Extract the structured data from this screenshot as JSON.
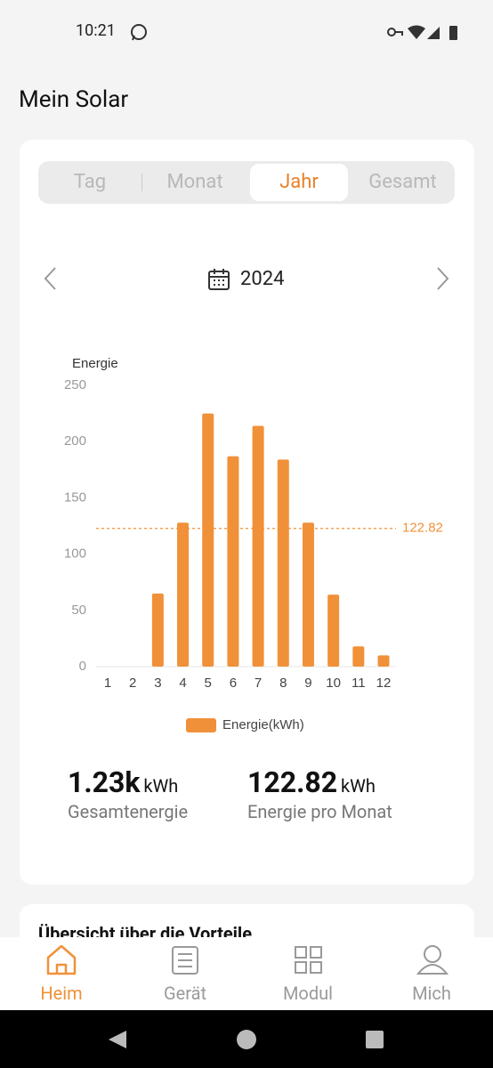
{
  "status_bar": {
    "time": "10:21"
  },
  "header": {
    "title": "Mein Solar"
  },
  "tabs": [
    "Tag",
    "Monat",
    "Jahr",
    "Gesamt"
  ],
  "date": "2024",
  "chart_data": {
    "type": "bar",
    "y_label": "Energie",
    "categories": [
      "1",
      "2",
      "3",
      "4",
      "5",
      "6",
      "7",
      "8",
      "9",
      "10",
      "11",
      "12"
    ],
    "series": [
      {
        "name": "Energie(kWh)",
        "color": "#f0913a",
        "values": [
          0,
          0,
          65,
          128,
          225,
          187,
          214,
          184,
          128,
          64,
          18,
          10
        ]
      }
    ],
    "average": 122.82,
    "ylim": [
      0,
      250
    ],
    "yticks": [
      0,
      50,
      100,
      150,
      200,
      250
    ],
    "grid": false
  },
  "summary": [
    {
      "value": "1.23k",
      "unit": "kWh",
      "label": "Gesamtenergie"
    },
    {
      "value": "122.82",
      "unit": "kWh",
      "label": "Energie pro Monat"
    }
  ],
  "section": {
    "title": "Übersicht über die Vorteile"
  },
  "nav": [
    "Heim",
    "Gerät",
    "Modul",
    "Mich"
  ]
}
